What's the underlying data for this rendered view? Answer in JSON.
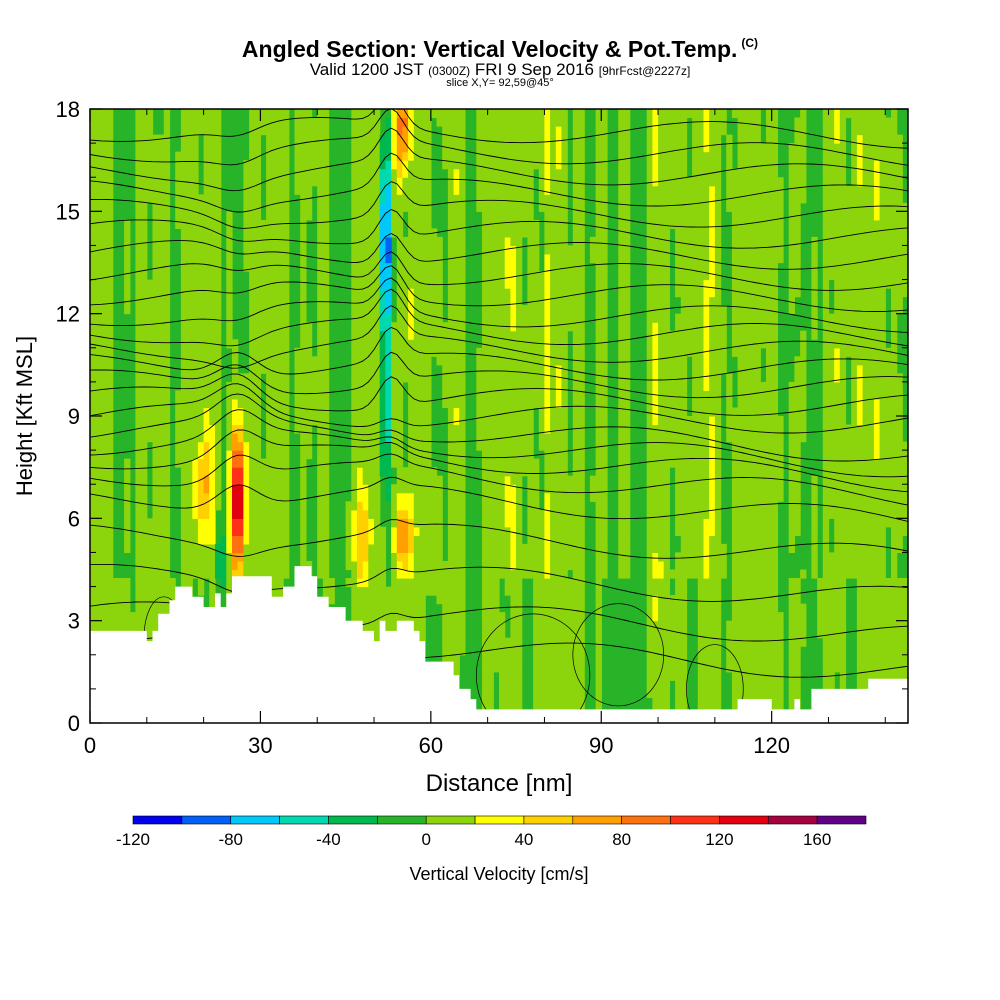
{
  "title": {
    "main": "Angled Section: Vertical Velocity & Pot.Temp.",
    "copyright": "(C)",
    "valid_prefix": "Valid 1200 JST",
    "valid_utc": "(0300Z)",
    "valid_date": "FRI 9 Sep 2016",
    "forecast": "[9hrFcst@2227z]",
    "slice": "slice X,Y= 92,59@45°"
  },
  "chart_data": {
    "type": "heatmap",
    "xlabel": "Distance [nm]",
    "ylabel": "Height [Kft MSL]",
    "xlim": [
      0,
      144
    ],
    "ylim": [
      0,
      18
    ],
    "x_ticks": [
      0,
      30,
      60,
      90,
      120
    ],
    "y_ticks": [
      0,
      3,
      6,
      9,
      12,
      15,
      18
    ],
    "colorbar": {
      "label": "Vertical Velocity [cm/s]",
      "tick_values": [
        -120,
        -80,
        -40,
        0,
        40,
        80,
        120,
        160
      ],
      "bounds": [
        -120,
        180
      ],
      "step": 20,
      "colors": [
        "#0000ee",
        "#0060f8",
        "#00c8f8",
        "#00d8b0",
        "#00b850",
        "#28b428",
        "#8cd40c",
        "#ffff00",
        "#ffd000",
        "#ffa000",
        "#ff7010",
        "#ff3018",
        "#e00010",
        "#a80040",
        "#600088"
      ]
    },
    "terrain_kft": [
      [
        0,
        2.7
      ],
      [
        10,
        2.7
      ],
      [
        10,
        2.4
      ],
      [
        11,
        2.4
      ],
      [
        11,
        2.7
      ],
      [
        12,
        2.7
      ],
      [
        12,
        3.2
      ],
      [
        14,
        3.2
      ],
      [
        14,
        3.6
      ],
      [
        15,
        3.6
      ],
      [
        15,
        4.0
      ],
      [
        18,
        4.0
      ],
      [
        18,
        3.7
      ],
      [
        20,
        3.7
      ],
      [
        20,
        3.4
      ],
      [
        22,
        3.4
      ],
      [
        22,
        3.8
      ],
      [
        23,
        3.8
      ],
      [
        23,
        3.4
      ],
      [
        24,
        3.4
      ],
      [
        24,
        3.8
      ],
      [
        25,
        3.8
      ],
      [
        25,
        4.3
      ],
      [
        32,
        4.3
      ],
      [
        32,
        3.7
      ],
      [
        34,
        3.7
      ],
      [
        34,
        4.0
      ],
      [
        36,
        4.0
      ],
      [
        36,
        4.6
      ],
      [
        39,
        4.6
      ],
      [
        39,
        4.3
      ],
      [
        40,
        4.3
      ],
      [
        40,
        3.7
      ],
      [
        42,
        3.7
      ],
      [
        42,
        3.4
      ],
      [
        45,
        3.4
      ],
      [
        45,
        3.0
      ],
      [
        48,
        3.0
      ],
      [
        48,
        2.7
      ],
      [
        50,
        2.7
      ],
      [
        50,
        2.4
      ],
      [
        51,
        2.4
      ],
      [
        51,
        3.0
      ],
      [
        52,
        3.0
      ],
      [
        52,
        2.7
      ],
      [
        54,
        2.7
      ],
      [
        54,
        3.0
      ],
      [
        57,
        3.0
      ],
      [
        57,
        2.7
      ],
      [
        58,
        2.7
      ],
      [
        58,
        2.4
      ],
      [
        59,
        2.4
      ],
      [
        59,
        1.8
      ],
      [
        64,
        1.8
      ],
      [
        64,
        1.4
      ],
      [
        65,
        1.4
      ],
      [
        65,
        1.0
      ],
      [
        67,
        1.0
      ],
      [
        67,
        0.7
      ],
      [
        68,
        0.7
      ],
      [
        68,
        0.4
      ],
      [
        114,
        0.4
      ],
      [
        114,
        0.7
      ],
      [
        120,
        0.7
      ],
      [
        120,
        0.4
      ],
      [
        124,
        0.4
      ],
      [
        124,
        0.7
      ],
      [
        125,
        0.7
      ],
      [
        125,
        0.4
      ],
      [
        127,
        0.4
      ],
      [
        127,
        1.0
      ],
      [
        137,
        1.0
      ],
      [
        137,
        1.3
      ],
      [
        144,
        1.3
      ]
    ],
    "isentrope_base_kft": [
      2.2,
      3.2,
      4.3,
      5.5,
      6.6,
      7.3,
      7.8,
      8.2,
      8.6,
      9.0,
      9.5,
      10.0,
      10.5,
      11.0,
      11.5,
      12.0,
      12.6,
      13.2,
      13.8,
      14.4,
      15.0,
      15.6,
      16.2,
      16.8,
      17.4
    ],
    "updrafts": [
      {
        "x": 26,
        "y": 6.5,
        "w": 1.2,
        "h": 2.2,
        "v": 155
      },
      {
        "x": 55,
        "y": 17.5,
        "w": 1.2,
        "h": 1.5,
        "v": 90
      },
      {
        "x": 55,
        "y": 5.5,
        "w": 1.5,
        "h": 1.0,
        "v": 70
      },
      {
        "x": 20,
        "y": 7.0,
        "w": 1.5,
        "h": 1.5,
        "v": 50
      },
      {
        "x": 48,
        "y": 5.5,
        "w": 1.5,
        "h": 1.5,
        "v": 50
      },
      {
        "x": 100,
        "y": 3.5,
        "w": 0.6,
        "h": 0.8,
        "v": 30
      }
    ],
    "downdrafts": [
      {
        "x": 52,
        "y": 14.0,
        "w": 0.8,
        "h": 3.0,
        "v": -120
      },
      {
        "x": 52,
        "y": 8.5,
        "w": 1.0,
        "h": 2.5,
        "v": -50
      },
      {
        "x": 23,
        "y": 4.5,
        "w": 0.8,
        "h": 1.2,
        "v": -45
      },
      {
        "x": 12,
        "y": 17.8,
        "w": 0.8,
        "h": 0.5,
        "v": -40
      }
    ]
  }
}
